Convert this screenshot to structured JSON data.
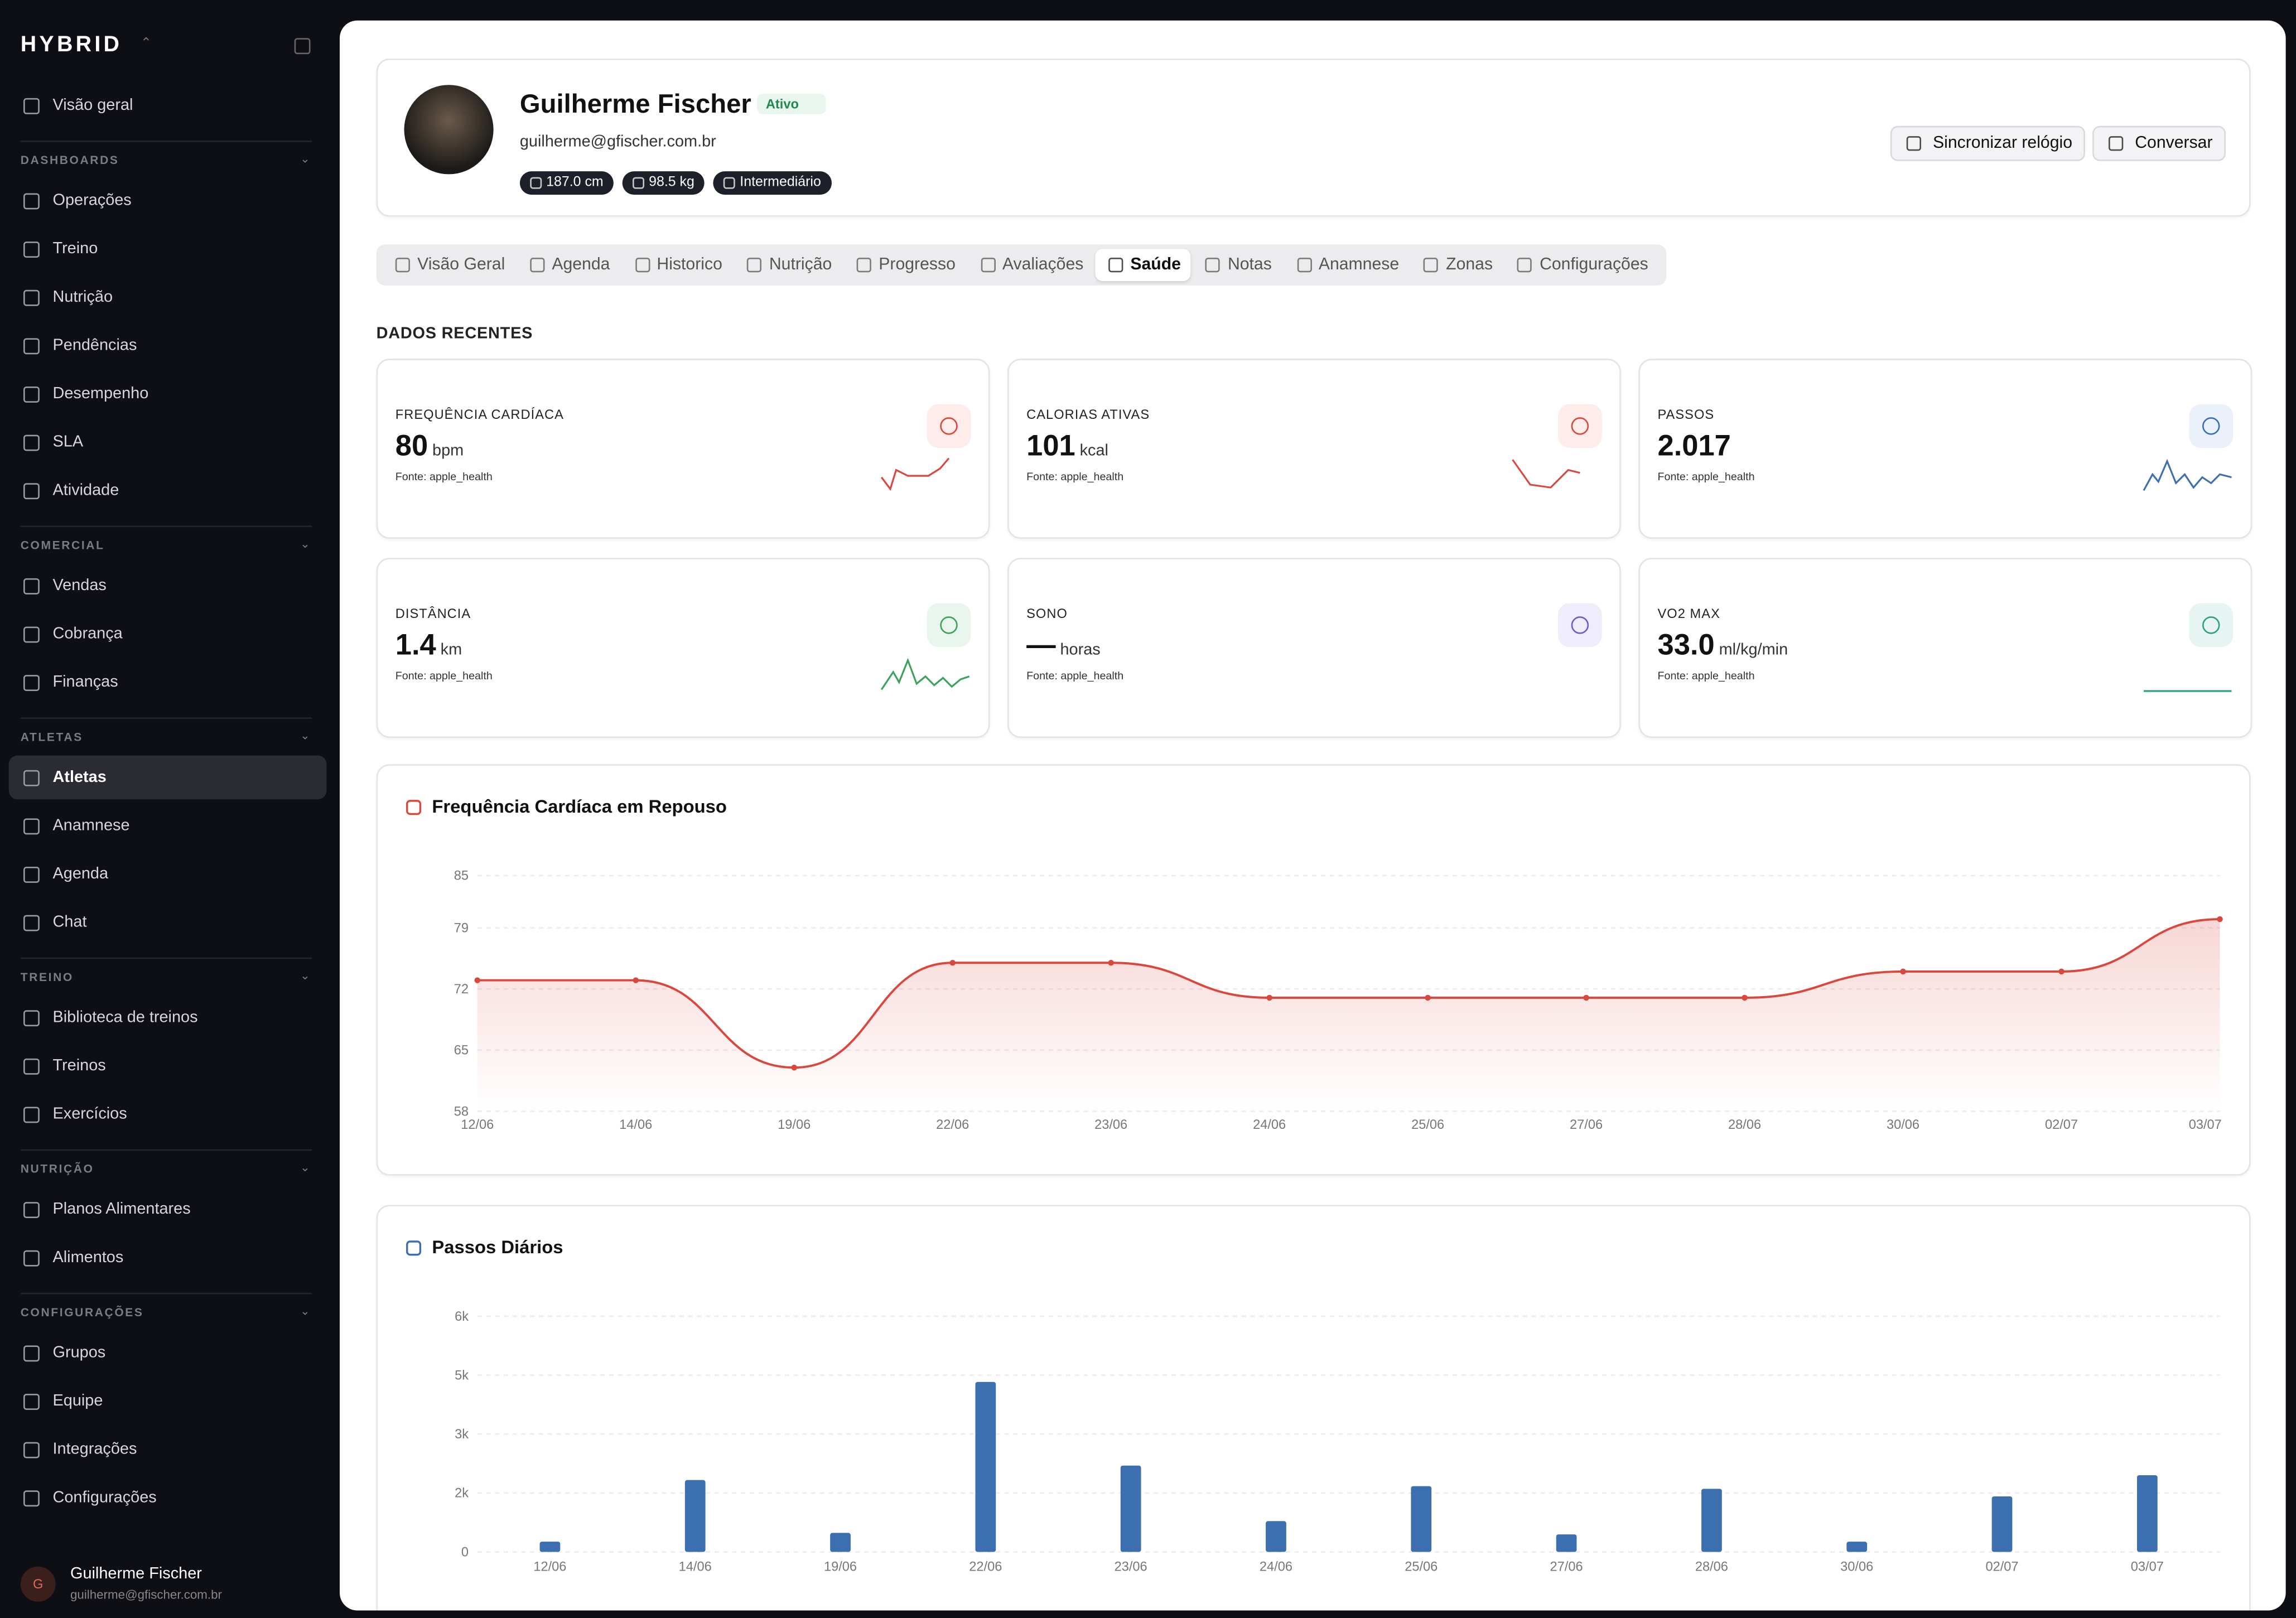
{
  "sidebar": {
    "logo": "HYBRID",
    "home": "Visão geral",
    "sections": [
      {
        "title": "DASHBOARDS",
        "items": [
          "Operações",
          "Treino",
          "Nutrição",
          "Pendências",
          "Desempenho",
          "SLA",
          "Atividade"
        ]
      },
      {
        "title": "COMERCIAL",
        "items": [
          "Vendas",
          "Cobrança",
          "Finanças"
        ]
      },
      {
        "title": "ATLETAS",
        "items": [
          "Atletas",
          "Anamnese",
          "Agenda",
          "Chat"
        ]
      },
      {
        "title": "TREINO",
        "items": [
          "Biblioteca de treinos",
          "Treinos",
          "Exercícios"
        ]
      },
      {
        "title": "NUTRIÇÃO",
        "items": [
          "Planos Alimentares",
          "Alimentos"
        ]
      },
      {
        "title": "CONFIGURAÇÕES",
        "items": [
          "Grupos",
          "Equipe",
          "Integrações",
          "Configurações"
        ]
      }
    ],
    "active": "Atletas",
    "user": {
      "initial": "G",
      "name": "Guilherme Fischer",
      "email": "guilherme@gfischer.com.br"
    }
  },
  "profile": {
    "name": "Guilherme Fischer",
    "status": "Ativo",
    "email": "guilherme@gfischer.com.br",
    "chips": [
      "187.0 cm",
      "98.5 kg",
      "Intermediário"
    ],
    "buttons": [
      "Sincronizar relógio",
      "Conversar"
    ]
  },
  "tabs": {
    "items": [
      "Visão Geral",
      "Agenda",
      "Historico",
      "Nutrição",
      "Progresso",
      "Avaliações",
      "Saúde",
      "Notas",
      "Anamnese",
      "Zonas",
      "Configurações"
    ],
    "active": "Saúde"
  },
  "section_title": "DADOS RECENTES",
  "cards": [
    {
      "label": "FREQUÊNCIA CARDÍACA",
      "value": "80",
      "unit": "bpm",
      "source": "Fonte: apple_health"
    },
    {
      "label": "CALORIAS ATIVAS",
      "value": "101",
      "unit": "kcal",
      "source": "Fonte: apple_health"
    },
    {
      "label": "PASSOS",
      "value": "2.017",
      "unit": null,
      "source": "Fonte: apple_health"
    },
    {
      "label": "DISTÂNCIA",
      "value": "1.4",
      "unit": "km",
      "source": "Fonte: apple_health"
    },
    {
      "label": "SONO",
      "value": "—",
      "unit": "horas",
      "source": "Fonte: apple_health"
    },
    {
      "label": "VO2 MAX",
      "value": "33.0",
      "unit": "ml/kg/min",
      "source": "Fonte: apple_health"
    }
  ],
  "heart_chart": {
    "type": "line",
    "title": "Frequência Cardíaca em Repouso",
    "categories": [
      "12/06",
      "14/06",
      "19/06",
      "22/06",
      "23/06",
      "24/06",
      "25/06",
      "27/06",
      "28/06",
      "30/06",
      "02/07",
      "03/07"
    ],
    "values": [
      73,
      73,
      63,
      75,
      75,
      71,
      71,
      71,
      71,
      74,
      74,
      80
    ],
    "color": "#d9473d",
    "ylim": [
      58,
      85
    ],
    "yticks": [
      58,
      65,
      72,
      79,
      85
    ],
    "grid": true
  },
  "steps_chart": {
    "type": "bar",
    "title": "Passos Diários",
    "categories": [
      "12/06",
      "14/06",
      "19/06",
      "22/06",
      "23/06",
      "24/06",
      "25/06",
      "27/06",
      "28/06",
      "30/06",
      "02/07",
      "03/07"
    ],
    "values": [
      270,
      1890,
      500,
      4470,
      2270,
      810,
      1730,
      460,
      1660,
      270,
      1460,
      2017
    ],
    "color": "#3b6fb0",
    "ylim": [
      0,
      6200
    ],
    "yticks": [
      0,
      {
        "value": 1550,
        "label": "2k"
      },
      {
        "value": 3100,
        "label": "3k"
      },
      {
        "value": 4650,
        "label": "5k"
      },
      {
        "value": 6200,
        "label": "6k"
      }
    ],
    "grid": true
  }
}
